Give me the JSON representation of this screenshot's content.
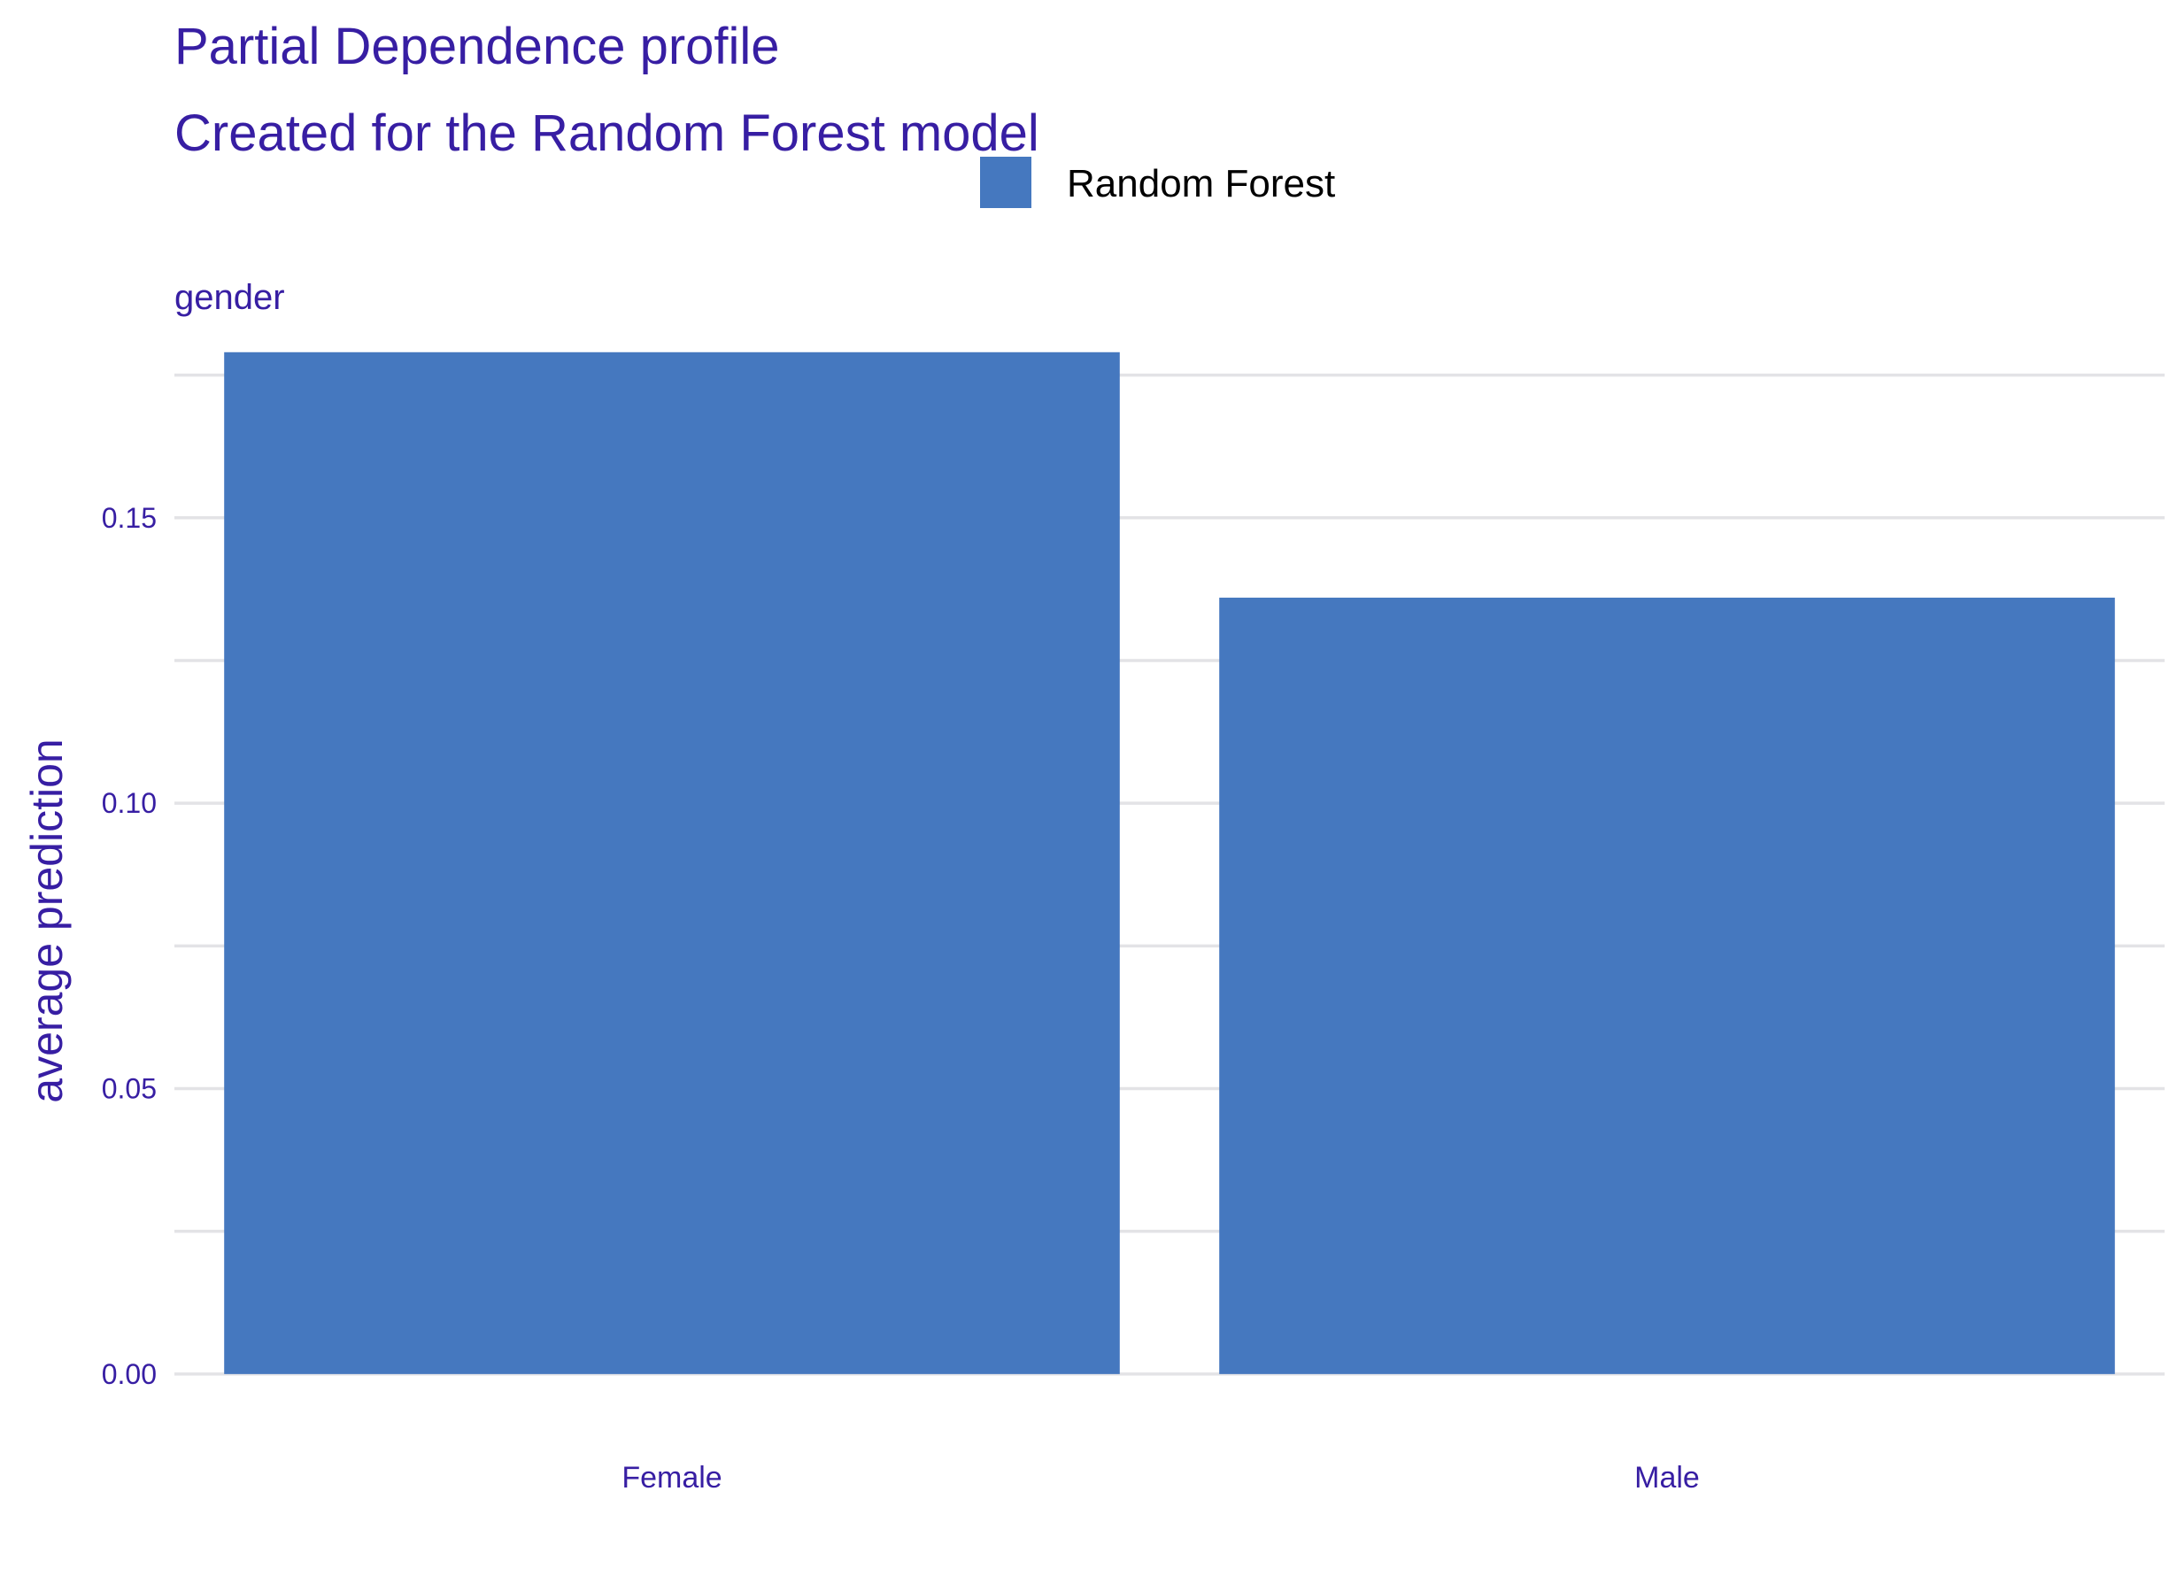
{
  "chart_data": {
    "type": "bar",
    "title": "Partial Dependence profile",
    "subtitle": "Created for the Random Forest model",
    "facet_label": "gender",
    "categories": [
      "Female",
      "Male"
    ],
    "series": [
      {
        "name": "Random Forest",
        "values": [
          0.179,
          0.136
        ],
        "color": "#4578bf"
      }
    ],
    "xlabel": "",
    "ylabel": "average prediction",
    "ylim": [
      -0.007,
      0.183
    ],
    "yticks": [
      0.0,
      0.05,
      0.1,
      0.15
    ],
    "ytick_labels": [
      "0.00",
      "0.05",
      "0.10",
      "0.15"
    ],
    "minor_gridlines": [
      0.025,
      0.075,
      0.125,
      0.175
    ],
    "grid": true,
    "legend_position": "top",
    "colors": {
      "text": "#371ea3",
      "grid": "#e3e3e6",
      "bar": "#4578bf"
    }
  }
}
